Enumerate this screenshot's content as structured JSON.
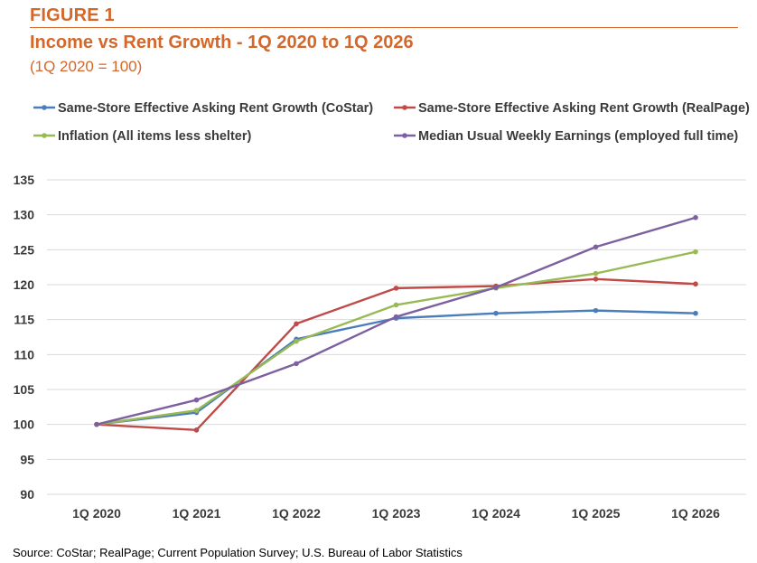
{
  "figure_label": "FIGURE 1",
  "source": "Source: CoStar; RealPage; Current Population Survey; U.S. Bureau of Labor Statistics",
  "chart_data": {
    "type": "line",
    "title": "Income vs Rent Growth - 1Q 2020 to 1Q 2026",
    "subtitle": "(1Q 2020 = 100)",
    "xlabel": "",
    "ylabel": "",
    "categories": [
      "1Q 2020",
      "1Q 2021",
      "1Q 2022",
      "1Q 2023",
      "1Q 2024",
      "1Q 2025",
      "1Q 2026"
    ],
    "ylim": [
      90,
      135
    ],
    "yticks": [
      90,
      95,
      100,
      105,
      110,
      115,
      120,
      125,
      130,
      135
    ],
    "grid": "horizontal",
    "legend_position": "top",
    "series": [
      {
        "name": "Same-Store Effective Asking Rent Growth (CoStar)",
        "color": "#4a7ebb",
        "values": [
          100.0,
          101.7,
          112.2,
          115.2,
          115.9,
          116.3,
          115.9
        ]
      },
      {
        "name": "Same-Store Effective Asking Rent Growth (RealPage)",
        "color": "#be4b48",
        "values": [
          100.0,
          99.2,
          114.4,
          119.5,
          119.8,
          120.8,
          120.1
        ]
      },
      {
        "name": "Inflation (All items less shelter)",
        "color": "#98b954",
        "values": [
          100.0,
          102.0,
          111.9,
          117.1,
          119.5,
          121.6,
          124.7
        ]
      },
      {
        "name": "Median Usual Weekly Earnings (employed full time)",
        "color": "#7d60a0",
        "values": [
          100.0,
          103.5,
          108.7,
          115.4,
          119.6,
          125.4,
          129.6
        ]
      }
    ]
  }
}
